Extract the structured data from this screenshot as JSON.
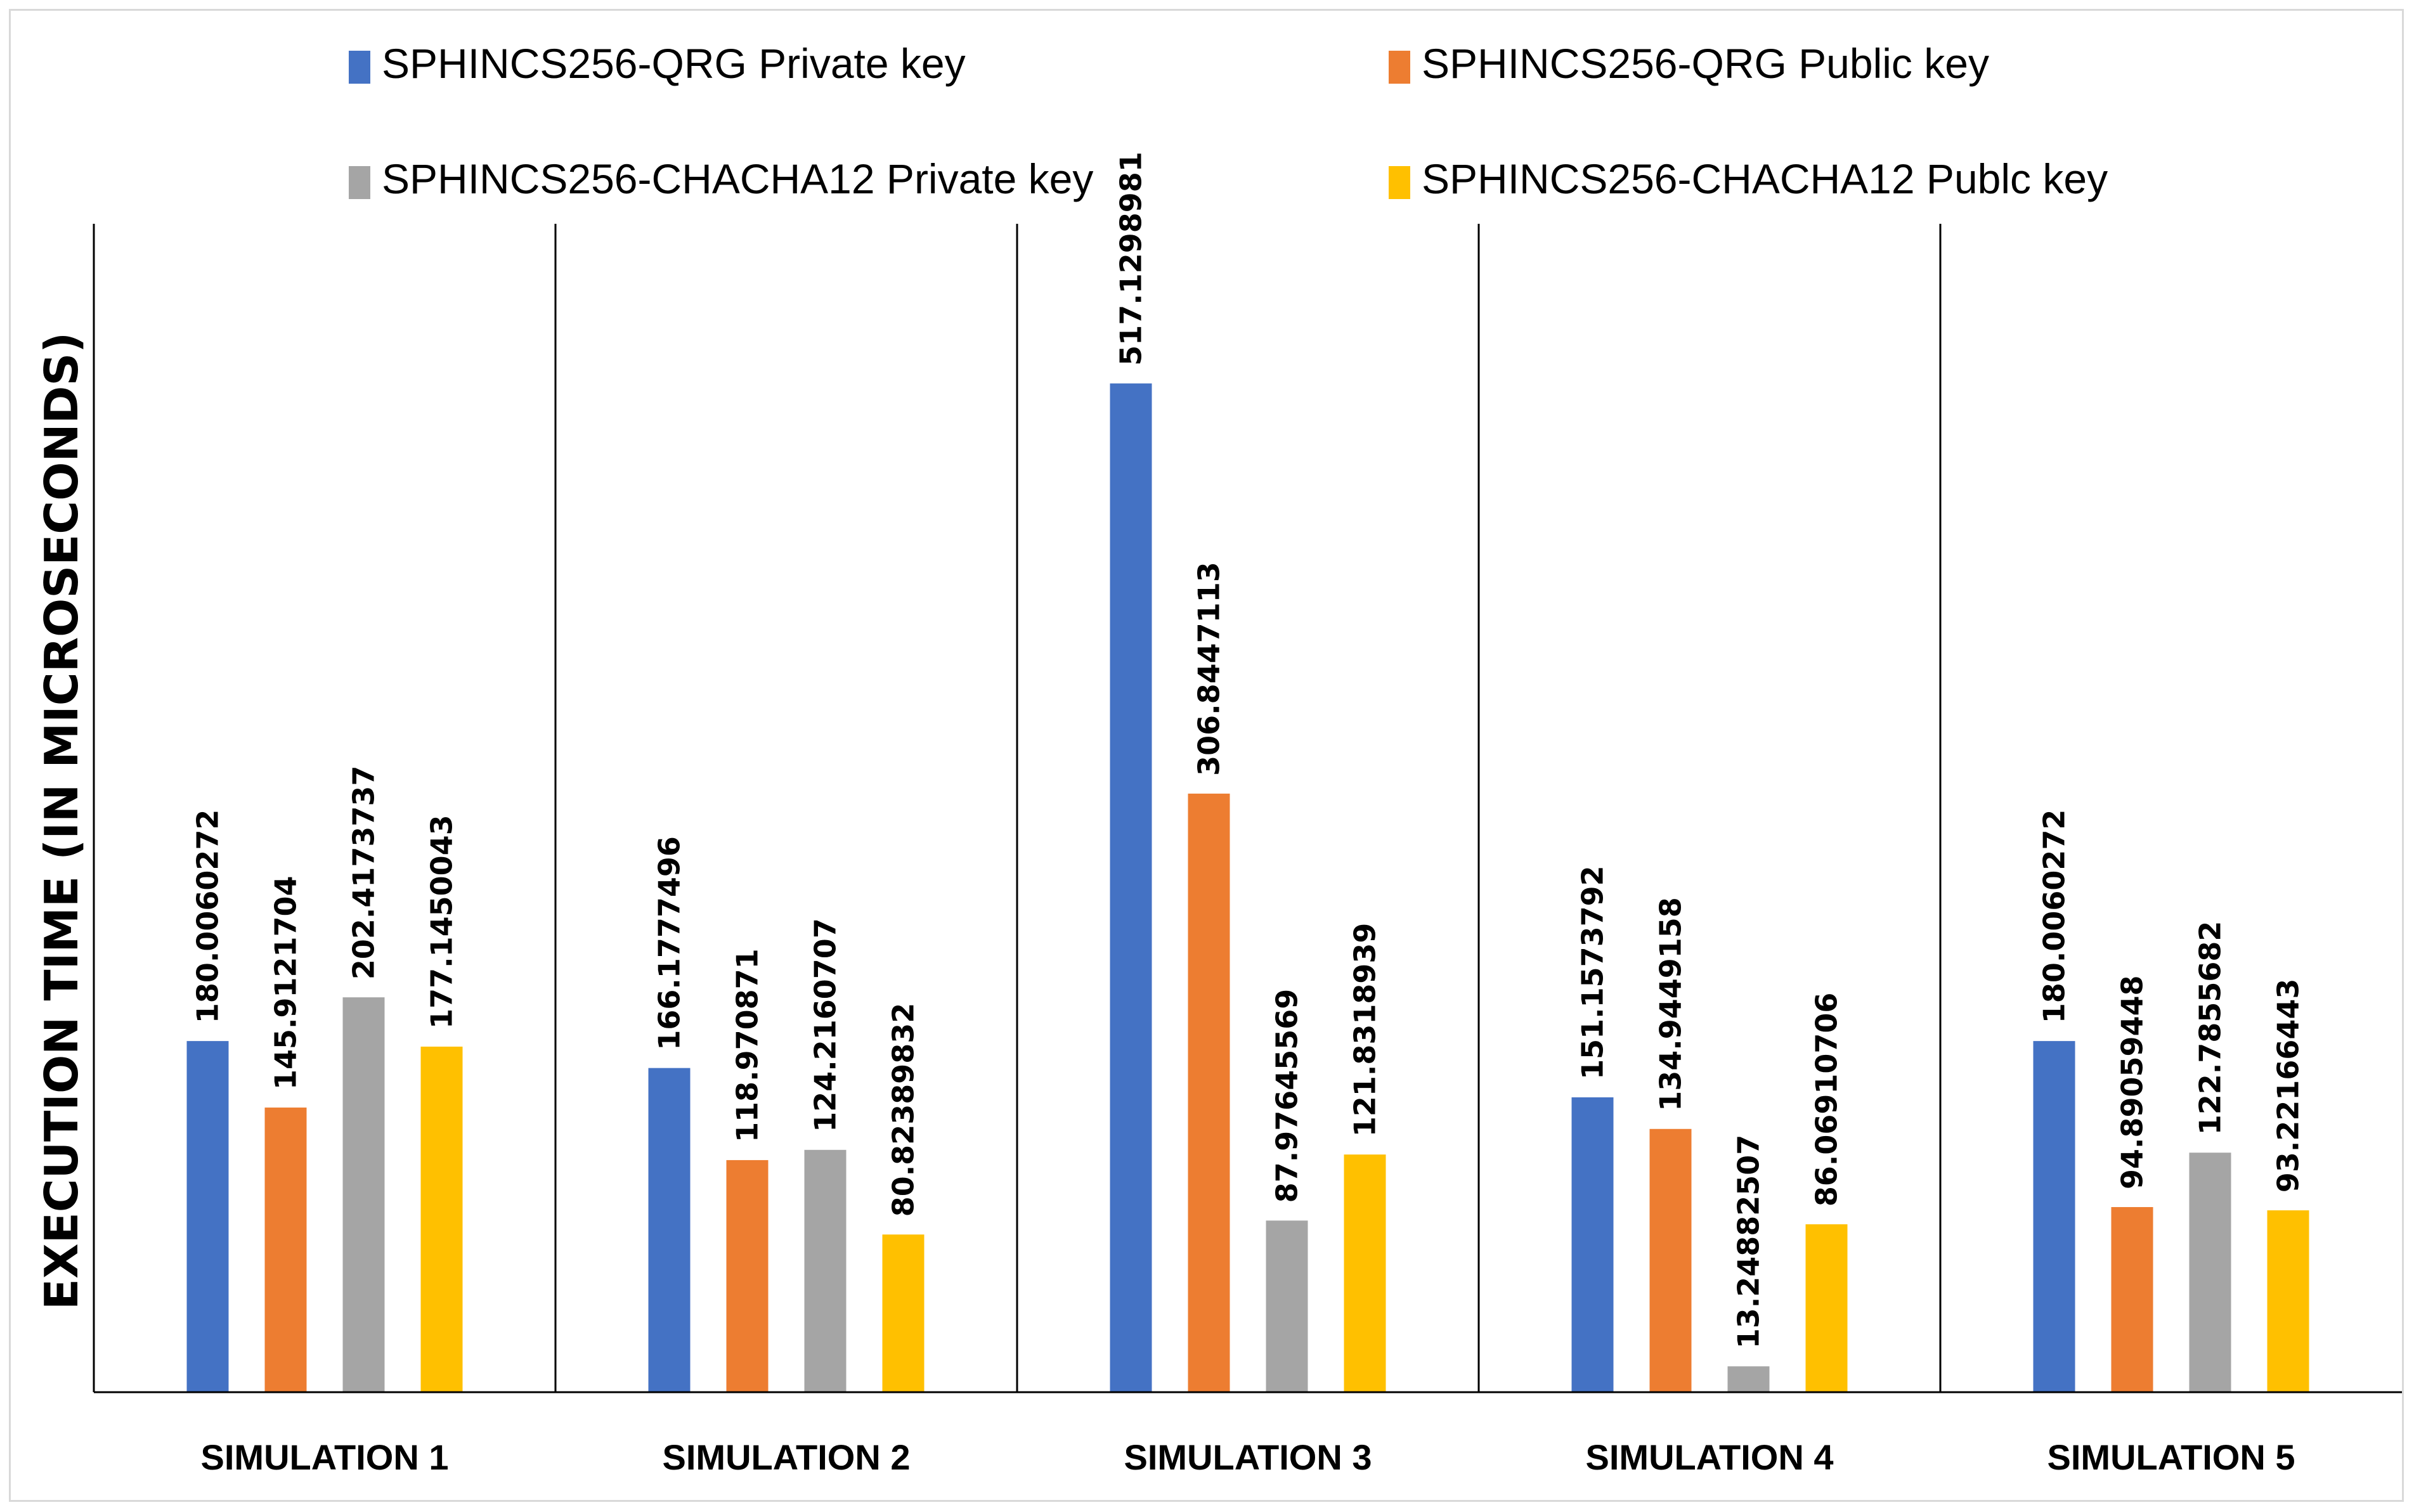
{
  "chart_data": {
    "type": "bar",
    "title": "",
    "xlabel": "",
    "ylabel": "EXECUTION TIME (IN MICROSECONDS)",
    "categories": [
      "SIMULATION 1",
      "SIMULATION 2",
      "SIMULATION 3",
      "SIMULATION 4",
      "SIMULATION 5"
    ],
    "series": [
      {
        "name": "SPHINCS256-QRG Private key",
        "color": "#4472c4",
        "values": [
          180.0060272,
          166.1777496,
          517.1298981,
          151.1573792,
          180.0060272
        ],
        "labels": [
          "180.0060272",
          "166.1777496",
          "517.1298981",
          "151.1573792",
          "180.0060272"
        ]
      },
      {
        "name": "SPHINCS256-QRG Public key",
        "color": "#ed7d31",
        "values": [
          145.9121704,
          118.970871,
          306.8447113,
          134.9449158,
          94.89059448
        ],
        "labels": [
          "145.9121704",
          "118.970871",
          "306.8447113",
          "134.9449158",
          "94.89059448"
        ]
      },
      {
        "name": "SPHINCS256-CHACHA12 Private key",
        "color": "#a5a5a5",
        "values": [
          202.4173737,
          124.2160707,
          87.97645569,
          13.24882507,
          122.7855682
        ],
        "labels": [
          "202.4173737",
          "124.2160707",
          "87.97645569",
          "13.24882507",
          "122.7855682"
        ]
      },
      {
        "name": "SPHINCS256-CHACHA12 Publc key",
        "color": "#ffc000",
        "values": [
          177.1450043,
          80.82389832,
          121.8318939,
          86.06910706,
          93.22166443
        ],
        "labels": [
          "177.1450043",
          "80.82389832",
          "121.8318939",
          "86.06910706",
          "93.22166443"
        ]
      }
    ],
    "ylim": [
      0,
      520
    ],
    "grid": false,
    "legend_position": "top"
  }
}
